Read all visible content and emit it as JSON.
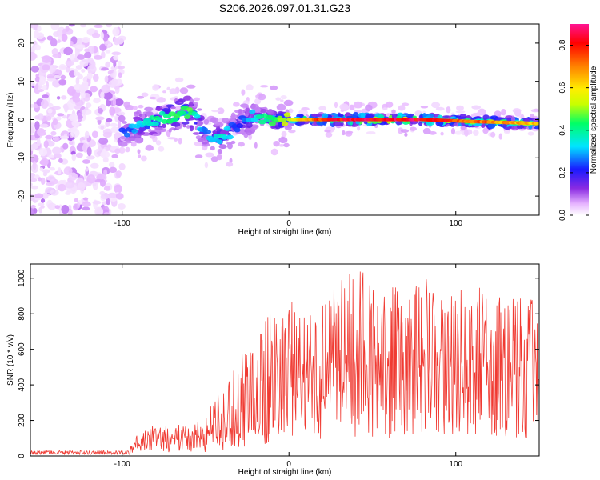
{
  "title": "S206.2026.097.01.31.G23",
  "colors": {
    "snr_line": "#f03a32",
    "frame": "#000000",
    "background": "#ffffff",
    "low_amplitude": "#7a22ff",
    "colormap_stops": [
      "#ffffff",
      "#e6b3ff",
      "#8a2be2",
      "#1a1aff",
      "#00e5ff",
      "#00ff66",
      "#c8ff00",
      "#ffee00",
      "#ff8000",
      "#ff0000",
      "#ff1493"
    ]
  },
  "chart_data": [
    {
      "type": "heatmap",
      "title": "S206.2026.097.01.31.G23",
      "xlabel": "Height of straight line (km)",
      "ylabel": "Frequency (Hz)",
      "xlim": [
        -155,
        150
      ],
      "ylim": [
        -25,
        25
      ],
      "xticks": [
        -100,
        0,
        100
      ],
      "xtick_labels": [
        "-100",
        "0",
        "100"
      ],
      "yticks": [
        20,
        10,
        0,
        -10,
        -20
      ],
      "ytick_labels": [
        "20",
        "10",
        "0",
        "-10",
        "-20"
      ],
      "colorbar": {
        "label": "Normalized spectral amplitude",
        "range": [
          0.0,
          0.9
        ],
        "ticks": [
          0.0,
          0.2,
          0.4,
          0.6,
          0.8
        ],
        "tick_labels": [
          "0.0",
          "0.2",
          "0.4",
          "0.6",
          "0.8"
        ]
      },
      "ridge": {
        "description_height_km": [
          -100,
          -80,
          -60,
          -50,
          -40,
          -30,
          -20,
          -10,
          0,
          20,
          50,
          80,
          110,
          150
        ],
        "frequency_hz": [
          -4,
          0,
          2,
          -3,
          -5,
          -1,
          1,
          0,
          0,
          0,
          0,
          0,
          -0.5,
          -1
        ],
        "peak_amplitude": [
          0.3,
          0.45,
          0.5,
          0.35,
          0.4,
          0.3,
          0.4,
          0.5,
          0.6,
          0.85,
          0.9,
          0.9,
          0.8,
          0.7
        ]
      }
    },
    {
      "type": "line",
      "xlabel": "Height of straight line (km)",
      "ylabel": "SNR (10 * v/v)",
      "xlim": [
        -155,
        150
      ],
      "ylim": [
        0,
        1080
      ],
      "xticks": [
        -100,
        0,
        100
      ],
      "xtick_labels": [
        "-100",
        "0",
        "100"
      ],
      "yticks": [
        0,
        200,
        400,
        600,
        800,
        1000
      ],
      "ytick_labels": [
        "0",
        "200",
        "400",
        "600",
        "800",
        "1000"
      ],
      "series": [
        {
          "name": "SNR",
          "x": [
            -155,
            -140,
            -120,
            -100,
            -90,
            -80,
            -70,
            -60,
            -50,
            -40,
            -30,
            -20,
            -10,
            0,
            10,
            20,
            30,
            40,
            50,
            60,
            70,
            80,
            90,
            100,
            110,
            120,
            130,
            140,
            150
          ],
          "y_mean": [
            15,
            15,
            20,
            30,
            60,
            80,
            90,
            100,
            110,
            150,
            200,
            230,
            300,
            350,
            420,
            450,
            470,
            500,
            500,
            500,
            500,
            500,
            490,
            500,
            500,
            500,
            500,
            490,
            500
          ],
          "y_max": [
            30,
            35,
            40,
            60,
            130,
            180,
            170,
            200,
            220,
            460,
            600,
            620,
            880,
            880,
            850,
            880,
            980,
            1060,
            1000,
            960,
            980,
            1060,
            920,
            960,
            960,
            950,
            920,
            900,
            860
          ]
        }
      ]
    }
  ]
}
